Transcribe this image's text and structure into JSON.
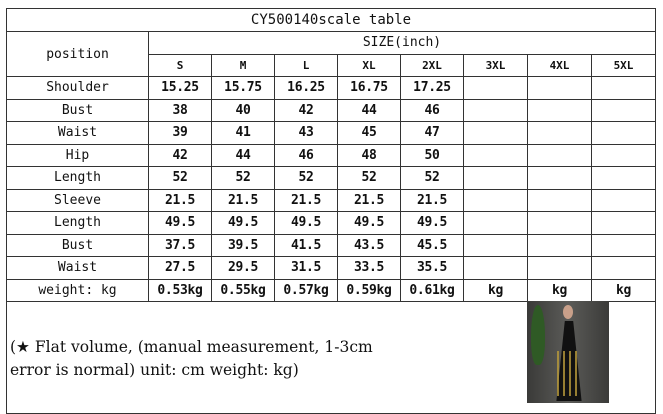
{
  "title": "CY500140scale table",
  "position_label": "position",
  "size_label": "SIZE(inch)",
  "sizes": [
    "S",
    "M",
    "L",
    "XL",
    "2XL",
    "3XL",
    "4XL",
    "5XL"
  ],
  "rows": [
    {
      "label": "Shoulder",
      "values": [
        "15.25",
        "15.75",
        "16.25",
        "16.75",
        "17.25",
        "",
        "",
        ""
      ]
    },
    {
      "label": "Bust",
      "values": [
        "38",
        "40",
        "42",
        "44",
        "46",
        "",
        "",
        ""
      ]
    },
    {
      "label": "Waist",
      "values": [
        "39",
        "41",
        "43",
        "45",
        "47",
        "",
        "",
        ""
      ]
    },
    {
      "label": "Hip",
      "values": [
        "42",
        "44",
        "46",
        "48",
        "50",
        "",
        "",
        ""
      ]
    },
    {
      "label": "Length",
      "values": [
        "52",
        "52",
        "52",
        "52",
        "52",
        "",
        "",
        ""
      ]
    },
    {
      "label": "Sleeve",
      "values": [
        "21.5",
        "21.5",
        "21.5",
        "21.5",
        "21.5",
        "",
        "",
        ""
      ]
    },
    {
      "label": "Length",
      "values": [
        "49.5",
        "49.5",
        "49.5",
        "49.5",
        "49.5",
        "",
        "",
        ""
      ]
    },
    {
      "label": "Bust",
      "values": [
        "37.5",
        "39.5",
        "41.5",
        "43.5",
        "45.5",
        "",
        "",
        ""
      ]
    },
    {
      "label": "Waist",
      "values": [
        "27.5",
        "29.5",
        "31.5",
        "33.5",
        "35.5",
        "",
        "",
        ""
      ]
    },
    {
      "label": "weight: kg",
      "values": [
        "0.53kg",
        "0.55kg",
        "0.57kg",
        "0.59kg",
        "0.61kg",
        "kg",
        "kg",
        "kg"
      ]
    }
  ],
  "note_line1": "(★ Flat volume, (manual measurement, 1-3cm",
  "note_line2": "error is normal) unit: cm weight: kg)"
}
